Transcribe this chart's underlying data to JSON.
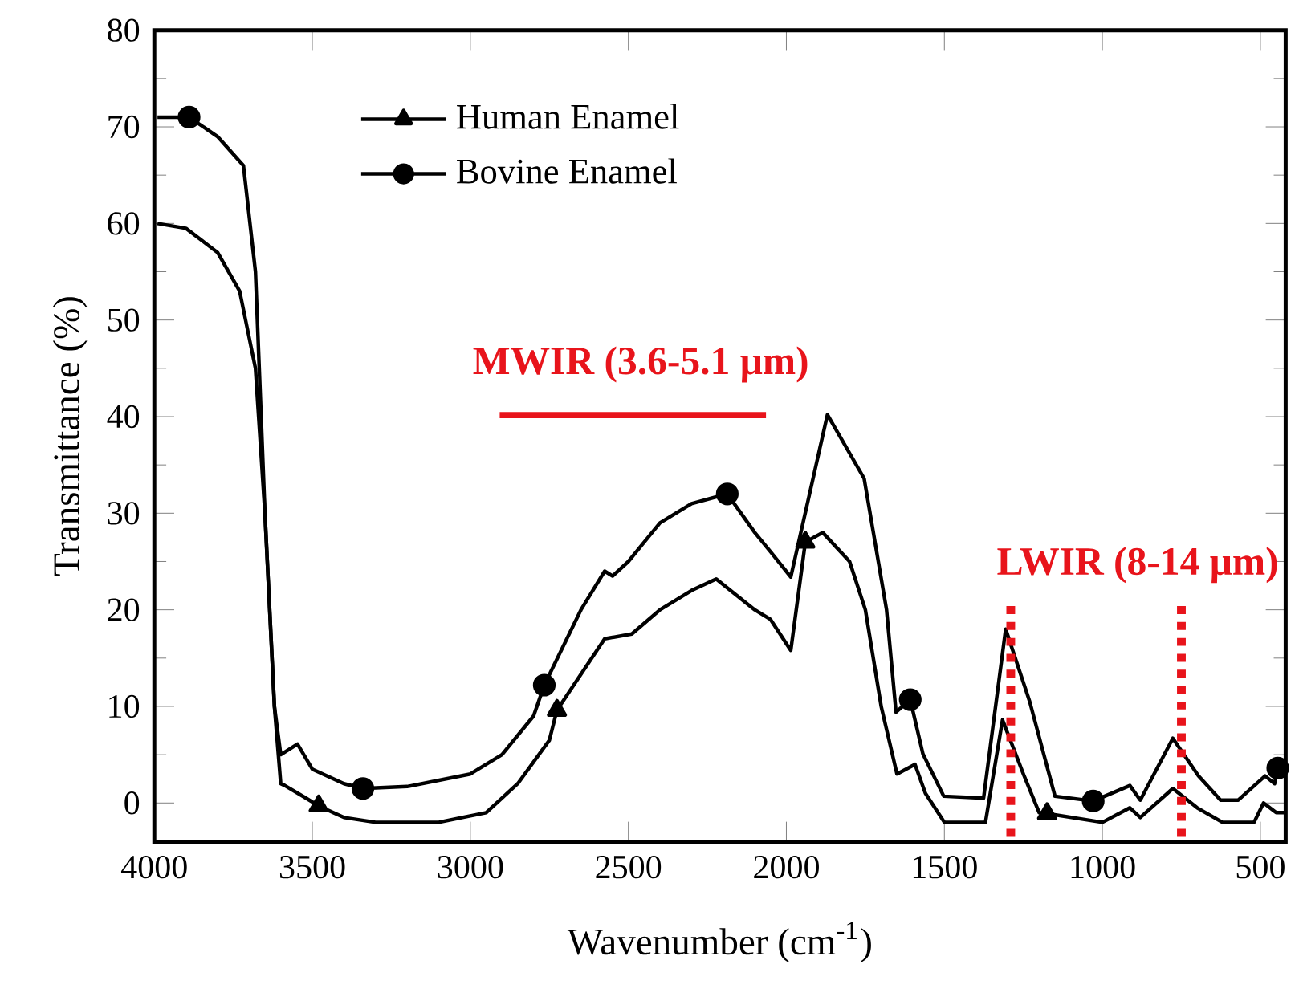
{
  "chart_data": {
    "type": "line",
    "xlabel": "Wavenumber (cm$^{-1}$)",
    "ylabel": "Transmittance (%)",
    "xlim": [
      4000,
      420
    ],
    "ylim": [
      -4,
      80
    ],
    "xticks": [
      4000,
      3500,
      3000,
      2500,
      2000,
      1500,
      1000,
      500
    ],
    "yticks": [
      0,
      10,
      20,
      30,
      40,
      50,
      60,
      70,
      80
    ],
    "legend": "top left",
    "line_style": "solid",
    "series": [
      {
        "color": "#000000",
        "x": [
          3990,
          3900,
          3800,
          3730,
          3680,
          3650,
          3620,
          3600,
          3587,
          3520,
          3480,
          3400,
          3300,
          3100,
          2950,
          2850,
          2750,
          2726,
          2575,
          2489,
          2400,
          2300,
          2222,
          2100,
          2050,
          1986,
          1940,
          1885,
          1800,
          1750,
          1700,
          1650,
          1593,
          1560,
          1500,
          1370,
          1316,
          1250,
          1200,
          1175,
          1000,
          913,
          880,
          777,
          700,
          620,
          520,
          490,
          470,
          450,
          420
        ],
        "values": [
          60,
          59.5,
          57,
          53,
          45,
          30,
          10,
          2,
          1.8,
          0.5,
          -0.3,
          -1.5,
          -2,
          -2,
          -1,
          2,
          6.5,
          9.6,
          17,
          17.5,
          20,
          22,
          23.2,
          20,
          19,
          15.8,
          27,
          28,
          25,
          20,
          10,
          3,
          4,
          1,
          -2,
          -2,
          8.6,
          3,
          -1,
          -1.1,
          -2,
          -0.5,
          -1.5,
          1.5,
          -0.5,
          -2,
          -2,
          0,
          -0.5,
          -1,
          -1
        ]
      },
      {
        "color": "#000000",
        "x": [
          3990,
          3890,
          3800,
          3718,
          3680,
          3650,
          3620,
          3600,
          3547,
          3500,
          3400,
          3340,
          3200,
          3000,
          2900,
          2800,
          2766,
          2650,
          2575,
          2550,
          2500,
          2450,
          2400,
          2300,
          2187,
          2100,
          2050,
          1986,
          1870,
          1754,
          1683,
          1653,
          1608,
          1568,
          1502,
          1376,
          1306,
          1230,
          1150,
          1029,
          913,
          880,
          777,
          696,
          626,
          570,
          485,
          455,
          445,
          420
        ],
        "values": [
          71,
          71,
          69,
          66,
          55,
          30,
          10,
          5,
          6.1,
          3.5,
          2,
          1.5,
          1.7,
          3,
          5,
          9,
          12.2,
          20,
          24,
          23.5,
          25,
          27,
          29,
          31,
          32,
          28,
          26,
          23.4,
          40.2,
          33.6,
          20,
          9.4,
          10.7,
          5.1,
          0.7,
          0.5,
          18,
          10.5,
          0.7,
          0.2,
          1.8,
          0.3,
          6.7,
          2.8,
          0.3,
          0.3,
          2.8,
          2,
          3.6,
          3.6
        ]
      },
      {
        "name": "Human Enamel",
        "type": "scatter",
        "color": "#000000",
        "marker": "triangle",
        "x": [
          3480,
          2726,
          1940,
          1175
        ],
        "values": [
          -0.3,
          9.6,
          27,
          -1.1
        ]
      },
      {
        "name": "Bovine Enamel",
        "type": "scatter",
        "color": "#000000",
        "marker": "circle",
        "x": [
          3890,
          3340,
          2766,
          2187,
          1608,
          1029,
          445
        ],
        "values": [
          71,
          1.5,
          12.2,
          32,
          10.7,
          0.2,
          3.6
        ]
      }
    ],
    "annotations": [
      "MWIR (3.6-5.1 μm)",
      "LWIR (8-14 μm)"
    ],
    "ref_lines": [
      {
        "axis": "x",
        "value": 1290,
        "color": "#e8141b",
        "line_style": "dotted"
      },
      {
        "axis": "x",
        "value": 750,
        "color": "#e8141b",
        "line_style": "dotted"
      }
    ]
  }
}
